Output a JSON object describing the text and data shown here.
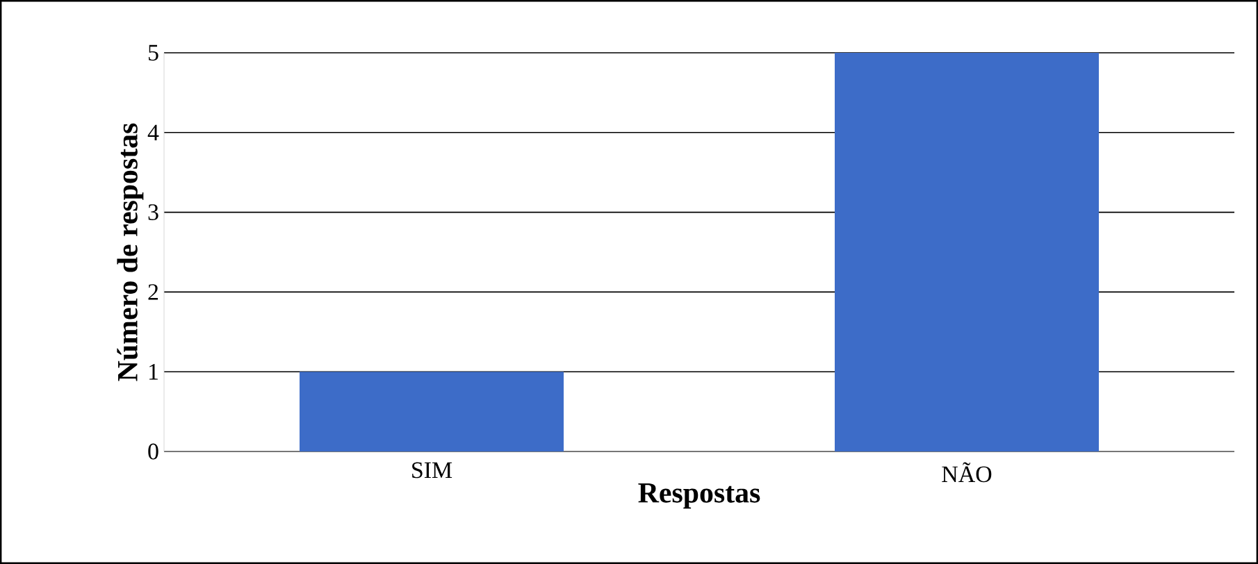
{
  "chart_data": {
    "type": "bar",
    "xlabel": "Respostas",
    "ylabel": "Número de respostas",
    "categories": [
      "SIM",
      "NÃO"
    ],
    "values": [
      1,
      5
    ],
    "color": "#3d6cc8",
    "ylim": [
      0,
      5
    ],
    "yticks": [
      0,
      1,
      2,
      3,
      4,
      5
    ],
    "grid": "y"
  }
}
